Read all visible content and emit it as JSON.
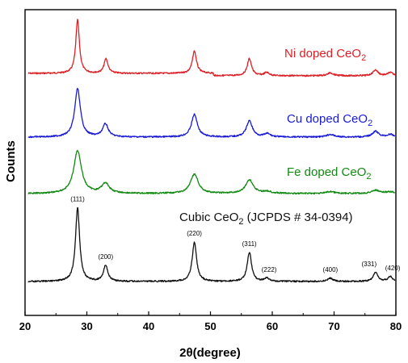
{
  "chart_data": {
    "type": "line",
    "title": "",
    "xlabel": "2θ(degree)",
    "ylabel": "Counts",
    "xlim": [
      20,
      80
    ],
    "xticks": [
      20,
      30,
      40,
      50,
      60,
      70,
      80
    ],
    "y_tick_labels": false,
    "grid": false,
    "series": [
      {
        "name_main": "Ni doped CeO",
        "name_sub": "2",
        "color": "#dd1f26",
        "offset": 258,
        "scale": 40,
        "noise": 0.9,
        "break_at": 50.5,
        "peaks": [
          {
            "x": 28.5,
            "h": 1.66,
            "w": 0.35
          },
          {
            "x": 33.1,
            "h": 0.45,
            "w": 0.38
          },
          {
            "x": 47.4,
            "h": 0.69,
            "w": 0.4
          },
          {
            "x": 56.3,
            "h": 0.53,
            "w": 0.42
          },
          {
            "x": 59.1,
            "h": 0.1,
            "w": 0.5
          },
          {
            "x": 69.4,
            "h": 0.09,
            "w": 0.6
          },
          {
            "x": 76.7,
            "h": 0.18,
            "w": 0.5
          },
          {
            "x": 79.1,
            "h": 0.1,
            "w": 0.5
          }
        ]
      },
      {
        "name_main": "Cu doped CeO",
        "name_sub": "2",
        "color": "#1a1ad8",
        "offset": 179,
        "scale": 40,
        "noise": 0.9,
        "peaks": [
          {
            "x": 28.5,
            "h": 1.5,
            "w": 0.55
          },
          {
            "x": 33.0,
            "h": 0.4,
            "w": 0.55
          },
          {
            "x": 47.4,
            "h": 0.7,
            "w": 0.58
          },
          {
            "x": 56.3,
            "h": 0.5,
            "w": 0.58
          },
          {
            "x": 59.2,
            "h": 0.1,
            "w": 0.6
          },
          {
            "x": 69.4,
            "h": 0.08,
            "w": 0.7
          },
          {
            "x": 76.7,
            "h": 0.18,
            "w": 0.6
          },
          {
            "x": 79.1,
            "h": 0.08,
            "w": 0.6
          }
        ]
      },
      {
        "name_main": "Fe doped CeO",
        "name_sub": "2",
        "color": "#128a12",
        "offset": 109,
        "scale": 40,
        "noise": 0.9,
        "peaks": [
          {
            "x": 28.5,
            "h": 1.33,
            "w": 0.75
          },
          {
            "x": 33.0,
            "h": 0.31,
            "w": 0.75
          },
          {
            "x": 47.4,
            "h": 0.6,
            "w": 0.75
          },
          {
            "x": 56.3,
            "h": 0.42,
            "w": 0.75
          },
          {
            "x": 59.2,
            "h": 0.06,
            "w": 0.8
          },
          {
            "x": 69.4,
            "h": 0.06,
            "w": 0.8
          },
          {
            "x": 76.7,
            "h": 0.1,
            "w": 0.8
          },
          {
            "x": 79.1,
            "h": 0.05,
            "w": 0.8
          }
        ]
      },
      {
        "name_main": "Cubic CeO",
        "name_sub": "2",
        "name_tail": " (JCPDS # 34-0394)",
        "color": "#111111",
        "offset": 0,
        "scale": 40,
        "noise": 0.9,
        "peaks": [
          {
            "x": 28.5,
            "h": 2.29,
            "w": 0.4
          },
          {
            "x": 33.05,
            "h": 0.5,
            "w": 0.42
          },
          {
            "x": 47.4,
            "h": 1.22,
            "w": 0.42
          },
          {
            "x": 56.3,
            "h": 0.9,
            "w": 0.42
          },
          {
            "x": 59.1,
            "h": 0.1,
            "w": 0.45
          },
          {
            "x": 69.4,
            "h": 0.1,
            "w": 0.5
          },
          {
            "x": 76.7,
            "h": 0.28,
            "w": 0.45
          },
          {
            "x": 79.1,
            "h": 0.15,
            "w": 0.45
          }
        ]
      }
    ],
    "annotations": [
      {
        "text": "(111)",
        "x": 28.5,
        "h": 2.29
      },
      {
        "text": "(200)",
        "x": 33.05,
        "h": 0.5
      },
      {
        "text": "(220)",
        "x": 47.4,
        "h": 1.22
      },
      {
        "text": "(311)",
        "x": 56.3,
        "h": 0.9
      },
      {
        "text": "(222)",
        "x": 59.1,
        "h": 0.1
      },
      {
        "text": "(400)",
        "x": 69.4,
        "h": 0.1
      },
      {
        "text": "(331)",
        "x": 76.7,
        "h": 0.28
      },
      {
        "text": "(420)",
        "x": 79.1,
        "h": 0.15
      }
    ]
  }
}
